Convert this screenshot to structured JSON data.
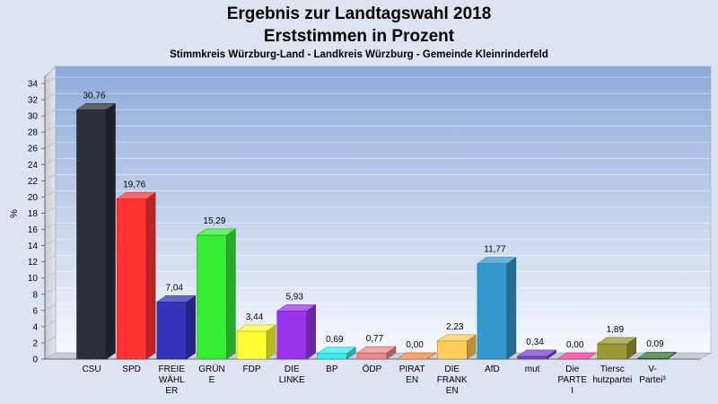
{
  "chart_data": {
    "type": "bar",
    "title": "Ergebnis zur Landtagswahl 2018",
    "title2": "Erststimmen in Prozent",
    "subtitle": "Stimmkreis Würzburg-Land - Landkreis Würzburg - Gemeinde Kleinrinderfeld",
    "ylabel": "%",
    "xlabel": "",
    "ylim": [
      0,
      34
    ],
    "yticks": [
      0,
      2,
      4,
      6,
      8,
      10,
      12,
      14,
      16,
      18,
      20,
      22,
      24,
      26,
      28,
      30,
      32,
      34
    ],
    "grid": true,
    "categories": [
      [
        "CSU"
      ],
      [
        "SPD"
      ],
      [
        "FREIE",
        "WÄHL",
        "ER"
      ],
      [
        "GRÜN",
        "E"
      ],
      [
        "FDP"
      ],
      [
        "DIE",
        "LINKE"
      ],
      [
        "BP"
      ],
      [
        "ÖDP"
      ],
      [
        "PIRAT",
        "EN"
      ],
      [
        "DIE",
        "FRANK",
        "EN"
      ],
      [
        "AfD"
      ],
      [
        "mut"
      ],
      [
        "Die",
        "PARTE",
        "I"
      ],
      [
        "Tiersc",
        "hutzpartei"
      ],
      [
        "V-",
        "Partei³"
      ]
    ],
    "values": [
      30.76,
      19.76,
      7.04,
      15.29,
      3.44,
      5.93,
      0.69,
      0.77,
      0.0,
      2.23,
      11.77,
      0.34,
      0.0,
      1.89,
      0.09
    ],
    "value_labels": [
      "30,76",
      "19,76",
      "7,04",
      "15,29",
      "3,44",
      "5,93",
      "0,69",
      "0,77",
      "0,00",
      "2,23",
      "11,77",
      "0,34",
      "0,00",
      "1,89",
      "0,09"
    ],
    "colors": [
      "#2b2f3a",
      "#ff3333",
      "#3333bb",
      "#33ee33",
      "#ffff33",
      "#9933ee",
      "#33eeee",
      "#ee8888",
      "#ff8833",
      "#ffcc55",
      "#3399cc",
      "#7744cc",
      "#ff3399",
      "#999933",
      "#337733"
    ]
  }
}
